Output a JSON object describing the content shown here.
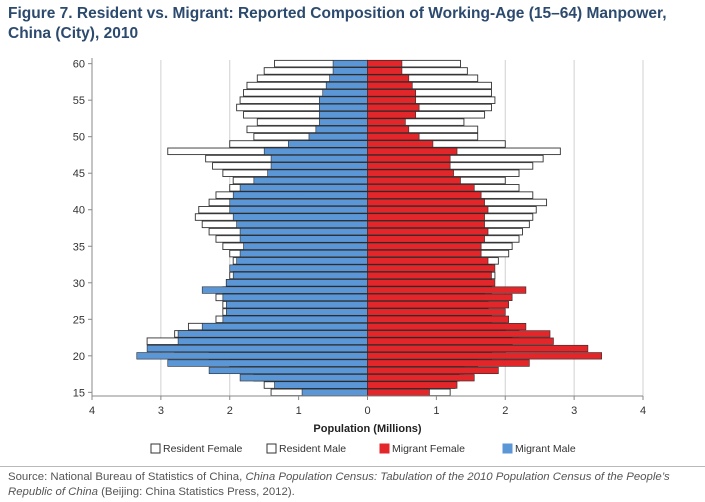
{
  "title": "Figure 7. Resident vs. Migrant: Reported Composition of Working-Age (15–64) Manpower, China (City), 2010",
  "source": {
    "prefix": "Source: National Bureau of Statistics of China, ",
    "italic": "China Population Census: Tabulation of the 2010 Population Census of the People’s Republic of China",
    "suffix": " (Beijing: China Statistics Press, 2012)."
  },
  "colors": {
    "resident_fill": "#ffffff",
    "resident_stroke": "#333333",
    "migrant_female": "#e3262a",
    "migrant_male": "#5b96d6",
    "grid": "#d0d0d0"
  },
  "chart_data": {
    "type": "bar",
    "orientation": "horizontal-population-pyramid",
    "xlabel": "Population (Millions)",
    "xlim": [
      -4,
      4
    ],
    "x_ticks": [
      -4,
      -3,
      -2,
      -1,
      0,
      1,
      2,
      3,
      4
    ],
    "x_tick_labels": [
      "4",
      "3",
      "2",
      "1",
      "0",
      "1",
      "2",
      "3",
      "4"
    ],
    "y_ticks": [
      15,
      20,
      25,
      30,
      35,
      40,
      45,
      50,
      55,
      60
    ],
    "ages": [
      15,
      16,
      17,
      18,
      19,
      20,
      21,
      22,
      23,
      24,
      25,
      26,
      27,
      28,
      29,
      30,
      31,
      32,
      33,
      34,
      35,
      36,
      37,
      38,
      39,
      40,
      41,
      42,
      43,
      44,
      45,
      46,
      47,
      48,
      49,
      50,
      51,
      52,
      53,
      54,
      55,
      56,
      57,
      58,
      59,
      60
    ],
    "legend_position": "bottom",
    "series": [
      {
        "name": "Resident Female",
        "side": "right",
        "values": [
          1.2,
          1.27,
          1.33,
          1.4,
          1.6,
          1.8,
          2.0,
          2.1,
          2.2,
          2.0,
          1.8,
          1.75,
          1.75,
          1.7,
          1.8,
          1.8,
          1.85,
          1.8,
          1.9,
          2.05,
          2.1,
          2.2,
          2.25,
          2.35,
          2.4,
          2.45,
          2.6,
          2.4,
          2.2,
          2.0,
          2.2,
          2.4,
          2.55,
          2.8,
          2.0,
          1.6,
          1.6,
          1.4,
          1.7,
          1.8,
          1.85,
          1.8,
          1.8,
          1.6,
          1.45,
          1.35
        ]
      },
      {
        "name": "Resident Male",
        "side": "left",
        "values": [
          1.4,
          1.5,
          1.65,
          1.85,
          2.0,
          2.3,
          2.8,
          3.2,
          2.8,
          2.6,
          2.2,
          2.1,
          2.1,
          2.2,
          2.1,
          2.05,
          2.0,
          1.95,
          1.95,
          2.0,
          2.1,
          2.2,
          2.3,
          2.4,
          2.5,
          2.45,
          2.3,
          2.2,
          2.0,
          1.95,
          2.1,
          2.25,
          2.35,
          2.9,
          2.0,
          1.65,
          1.75,
          1.6,
          1.8,
          1.9,
          1.85,
          1.8,
          1.75,
          1.6,
          1.5,
          1.35
        ]
      },
      {
        "name": "Migrant Female",
        "side": "right",
        "values": [
          0.9,
          1.3,
          1.55,
          1.9,
          2.35,
          3.4,
          3.2,
          2.7,
          2.65,
          2.3,
          2.05,
          2.0,
          2.05,
          2.1,
          2.3,
          1.85,
          1.8,
          1.85,
          1.75,
          1.65,
          1.65,
          1.7,
          1.75,
          1.7,
          1.7,
          1.75,
          1.7,
          1.65,
          1.55,
          1.35,
          1.25,
          1.2,
          1.2,
          1.3,
          0.95,
          0.75,
          0.6,
          0.55,
          0.7,
          0.75,
          0.7,
          0.7,
          0.65,
          0.6,
          0.5,
          0.5
        ]
      },
      {
        "name": "Migrant Male",
        "side": "left",
        "values": [
          0.95,
          1.35,
          1.85,
          2.3,
          2.9,
          3.35,
          3.2,
          2.75,
          2.75,
          2.4,
          2.1,
          2.05,
          2.05,
          2.1,
          2.4,
          2.05,
          1.95,
          2.0,
          1.9,
          1.85,
          1.8,
          1.85,
          1.85,
          1.9,
          1.95,
          2.0,
          2.0,
          1.95,
          1.85,
          1.65,
          1.45,
          1.4,
          1.4,
          1.5,
          1.15,
          0.85,
          0.75,
          0.7,
          0.7,
          0.7,
          0.7,
          0.65,
          0.6,
          0.55,
          0.5,
          0.5
        ]
      }
    ]
  }
}
